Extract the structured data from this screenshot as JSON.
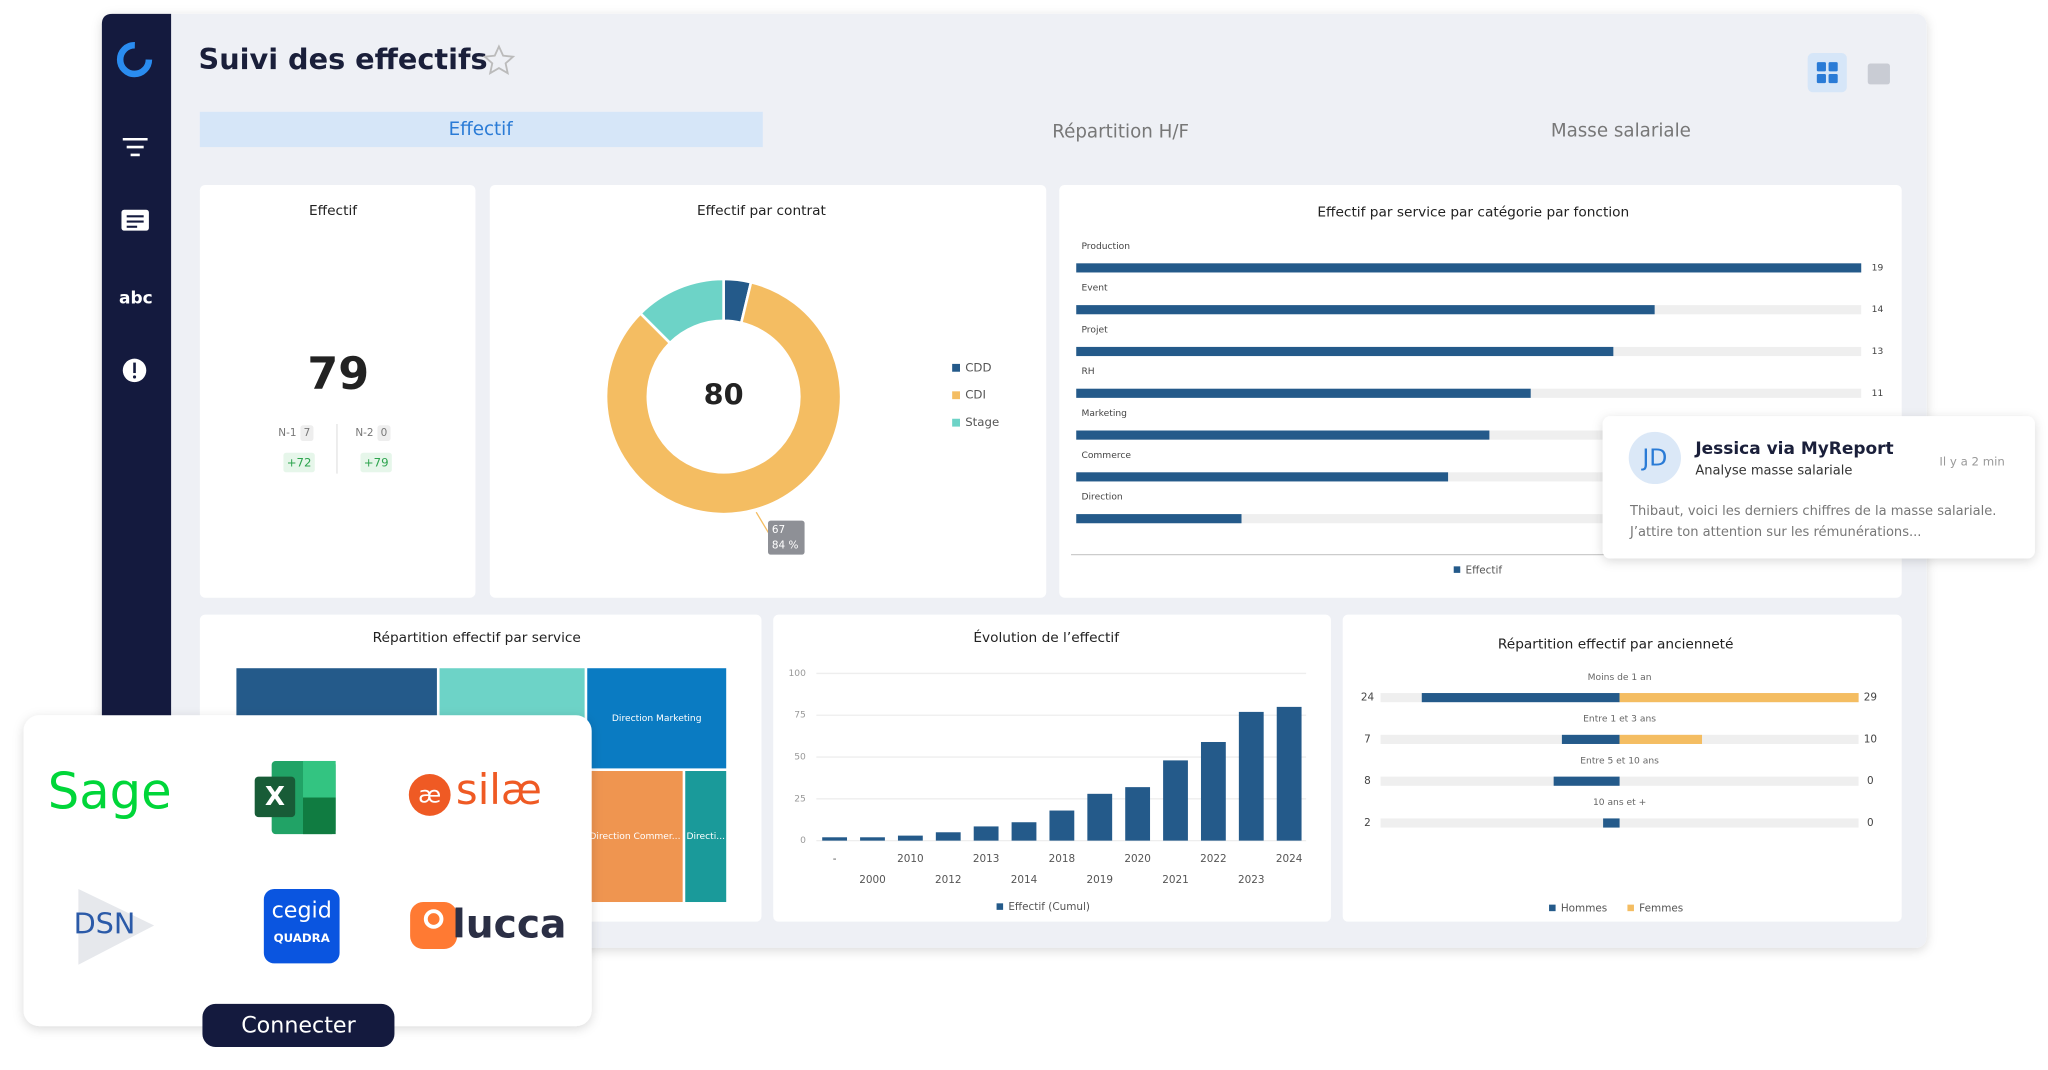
{
  "app": {
    "title": "Suivi des effectifs",
    "sidebar_label": "abc",
    "tabs": [
      "Effectif",
      "Répartition H/F",
      "Masse salariale"
    ]
  },
  "kpi": {
    "title": "Effectif",
    "value": 79,
    "comparisons": [
      {
        "label": "N-1",
        "reference": 7,
        "delta": "+72"
      },
      {
        "label": "N-2",
        "reference": 0,
        "delta": "+79"
      }
    ]
  },
  "chart_data": [
    {
      "type": "pie",
      "donut": true,
      "title": "Effectif par contrat",
      "categories": [
        "CDD",
        "CDI",
        "Stage"
      ],
      "values": [
        3,
        67,
        10
      ],
      "colors": [
        "#245a8a",
        "#f4bd62",
        "#6dd3c7"
      ],
      "total": 80,
      "tooltip_percent": "84 %",
      "tooltip_index": 1
    },
    {
      "type": "hbar",
      "title": "Effectif par service par catégorie par fonction",
      "categories": [
        "Production",
        "Event",
        "Projet",
        "RH",
        "Marketing",
        "Commerce",
        "Direction"
      ],
      "values": [
        19,
        14,
        13,
        11,
        10,
        9,
        4
      ],
      "xlim": [
        0,
        19
      ],
      "color": "#245a8a",
      "legend": "Effectif"
    },
    {
      "type": "treemap",
      "title": "Répartition effectif par service",
      "categories": [
        null,
        null,
        "Direction Marketing",
        "Direction Commer...",
        "Directi..."
      ],
      "values": [
        33,
        24,
        10,
        9,
        4
      ],
      "colors": [
        "#245a8a",
        "#6dd3c7",
        "#0a7bc2",
        "#ef9550",
        "#1a9a9a"
      ]
    },
    {
      "type": "bar",
      "title": "Évolution de l’effectif",
      "categories": [
        "-",
        "2000",
        "2010",
        "2012",
        "2013",
        "2014",
        "2018",
        "2019",
        "2020",
        "2021",
        "2022",
        "2023",
        "2024"
      ],
      "values": [
        2,
        2,
        3,
        5,
        8.5,
        11,
        18,
        28,
        32,
        48,
        59,
        77,
        80
      ],
      "ylim": [
        0,
        100
      ],
      "yticks": [
        0,
        25,
        50,
        75,
        100
      ],
      "grid": true,
      "color": "#245a8a",
      "legend": "Effectif (Cumul)"
    },
    {
      "type": "diverging_bar",
      "title": "Répartition effectif par ancienneté",
      "categories": [
        "Moins de 1 an",
        "Entre 1 et 3 ans",
        "Entre 5 et 10 ans",
        "10 ans et +"
      ],
      "xlim": [
        0,
        29
      ],
      "series": [
        {
          "name": "Hommes",
          "color": "#245a8a",
          "values": [
            24,
            7,
            8,
            2
          ]
        },
        {
          "name": "Femmes",
          "color": "#f4bd62",
          "values": [
            29,
            10,
            0,
            0
          ]
        }
      ]
    }
  ],
  "notification": {
    "initials": "JD",
    "sender": "Jessica via MyReport",
    "subject": "Analyse masse salariale",
    "time": "Il y a 2 min",
    "body": [
      "Thibaut, voici les derniers chiffres de la masse salariale.",
      "J’attire ton attention sur les rémunérations..."
    ]
  },
  "integrations": {
    "sage": "Sage",
    "excel": "X",
    "silae": "silæ",
    "dsn": "DSN",
    "cegid": "cegid",
    "quadra": "QUADRA",
    "lucca": "lucca",
    "button": "Connecter"
  }
}
